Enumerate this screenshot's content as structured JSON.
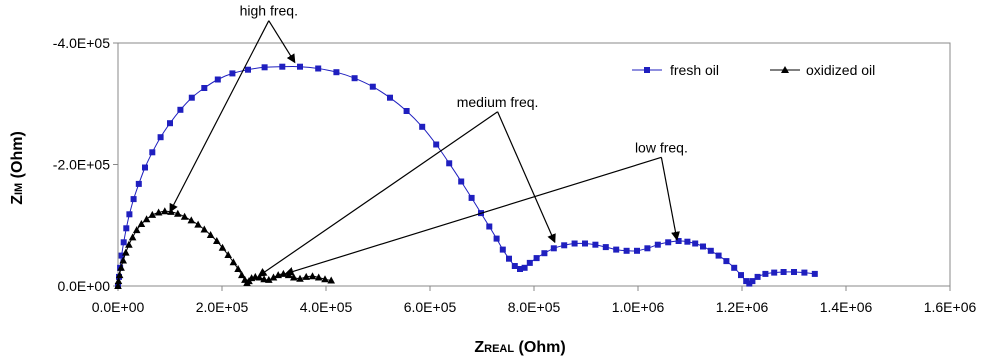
{
  "chart_data": {
    "type": "scatter",
    "title": "",
    "xlabel": {
      "main": "Z",
      "sub": "REAL",
      "unit": " (Ohm)"
    },
    "ylabel": {
      "main": "Z",
      "sub": "IM",
      "unit": " (Ohm)"
    },
    "xlim": [
      0,
      1600000
    ],
    "ylim": [
      0,
      400000
    ],
    "y_axis_inverted_sign": true,
    "grid": false,
    "legend_placement": "top-right",
    "x_ticks": [
      {
        "value": 0,
        "label": "0.0E+00"
      },
      {
        "value": 200000,
        "label": "2.0E+05"
      },
      {
        "value": 400000,
        "label": "4.0E+05"
      },
      {
        "value": 600000,
        "label": "6.0E+05"
      },
      {
        "value": 800000,
        "label": "8.0E+05"
      },
      {
        "value": 1000000,
        "label": "1.0E+06"
      },
      {
        "value": 1200000,
        "label": "1.2E+06"
      },
      {
        "value": 1400000,
        "label": "1.4E+06"
      },
      {
        "value": 1600000,
        "label": "1.6E+06"
      }
    ],
    "y_ticks": [
      {
        "value": 0,
        "label": "0.0E+00"
      },
      {
        "value": 200000,
        "label": "-2.0E+05"
      },
      {
        "value": 400000,
        "label": "-4.0E+05"
      }
    ],
    "series": [
      {
        "name": "fresh oil",
        "color": "#1f1fbf",
        "marker": "square",
        "x": [
          0,
          2000,
          4000,
          7000,
          11000,
          16000,
          22000,
          30000,
          40000,
          52000,
          66000,
          82000,
          100000,
          120000,
          142000,
          166000,
          192000,
          220000,
          250000,
          282000,
          316000,
          350000,
          385000,
          420000,
          455000,
          490000,
          523000,
          555000,
          585000,
          612000,
          637000,
          660000,
          680000,
          698000,
          714000,
          728000,
          740000,
          752000,
          763000,
          773000,
          782000,
          792000,
          805000,
          820000,
          838000,
          858000,
          878000,
          898000,
          918000,
          938000,
          958000,
          978000,
          998000,
          1018000,
          1038000,
          1058000,
          1078000,
          1095000,
          1110000,
          1125000,
          1140000,
          1155000,
          1170000,
          1185000,
          1198000,
          1208000,
          1214000,
          1220000,
          1230000,
          1245000,
          1262000,
          1280000,
          1300000,
          1320000,
          1340000
        ],
        "y": [
          0,
          15000,
          30000,
          50000,
          72000,
          95000,
          118000,
          143000,
          168000,
          195000,
          220000,
          245000,
          268000,
          290000,
          310000,
          326000,
          340000,
          350000,
          356000,
          360000,
          361000,
          361000,
          358000,
          352000,
          342000,
          328000,
          310000,
          288000,
          262000,
          233000,
          202000,
          172000,
          145000,
          120000,
          98000,
          78000,
          60000,
          45000,
          33000,
          28000,
          30000,
          38000,
          46000,
          54000,
          62000,
          67000,
          70000,
          70000,
          68000,
          64000,
          60000,
          58000,
          58000,
          62000,
          68000,
          72000,
          74000,
          73000,
          70000,
          65000,
          58000,
          50000,
          41000,
          30000,
          18000,
          8000,
          4000,
          8000,
          15000,
          20000,
          22000,
          23000,
          23000,
          22000,
          20000
        ]
      },
      {
        "name": "oxidized oil",
        "color": "#000000",
        "marker": "triangle",
        "x": [
          0,
          1000,
          3000,
          6000,
          10000,
          15000,
          21000,
          28000,
          36000,
          45000,
          55000,
          66000,
          78000,
          90000,
          102000,
          115000,
          128000,
          141000,
          154000,
          166000,
          178000,
          190000,
          201000,
          212000,
          222000,
          231000,
          238000,
          244000,
          248000,
          252000,
          257000,
          264000,
          272000,
          281000,
          290000,
          299000,
          308000,
          318000,
          328000,
          338000,
          350000,
          362000,
          374000,
          386000,
          398000,
          410000
        ],
        "y": [
          0,
          8000,
          18000,
          30000,
          42000,
          55000,
          68000,
          80000,
          92000,
          102000,
          110000,
          117000,
          121000,
          123000,
          122000,
          119000,
          114000,
          108000,
          101000,
          93000,
          84000,
          74000,
          63000,
          51000,
          39000,
          28000,
          18000,
          10000,
          5000,
          8000,
          13000,
          15000,
          14000,
          11000,
          10000,
          14000,
          18000,
          20000,
          18000,
          14000,
          12000,
          15000,
          16000,
          14000,
          11000,
          9000
        ]
      }
    ],
    "annotations": [
      {
        "text": "high freq.",
        "label_x": 290000,
        "label_y": 445000,
        "targets": [
          [
            340000,
            368000
          ],
          [
            100000,
            122000
          ]
        ]
      },
      {
        "text": "medium freq.",
        "label_x": 730000,
        "label_y": 295000,
        "targets": [
          [
            840000,
            72000
          ],
          [
            270000,
            16000
          ]
        ]
      },
      {
        "text": "low freq.",
        "label_x": 1045000,
        "label_y": 220000,
        "targets": [
          [
            1075000,
            76000
          ],
          [
            322000,
            20000
          ]
        ]
      }
    ]
  }
}
